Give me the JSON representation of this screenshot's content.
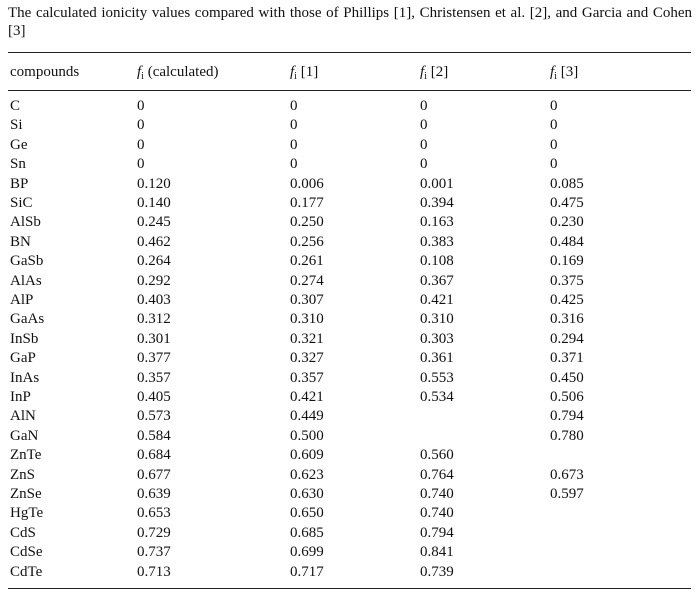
{
  "caption": "The calculated ionicity values compared with those of Phillips [1], Christensen et al. [2], and Garcia and Cohen [3]",
  "table": {
    "columns": [
      {
        "label": "compounds"
      },
      {
        "symbol": "f",
        "subscript": "i",
        "suffix": " (calculated)"
      },
      {
        "symbol": "f",
        "subscript": "i",
        "suffix": " [1]"
      },
      {
        "symbol": "f",
        "subscript": "i",
        "suffix": " [2]"
      },
      {
        "symbol": "f",
        "subscript": "i",
        "suffix": " [3]"
      }
    ],
    "rows": [
      [
        "C",
        "0",
        "0",
        "0",
        "0"
      ],
      [
        "Si",
        "0",
        "0",
        "0",
        "0"
      ],
      [
        "Ge",
        "0",
        "0",
        "0",
        "0"
      ],
      [
        "Sn",
        "0",
        "0",
        "0",
        "0"
      ],
      [
        "BP",
        "0.120",
        "0.006",
        "0.001",
        "0.085"
      ],
      [
        "SiC",
        "0.140",
        "0.177",
        "0.394",
        "0.475"
      ],
      [
        "AlSb",
        "0.245",
        "0.250",
        "0.163",
        "0.230"
      ],
      [
        "BN",
        "0.462",
        "0.256",
        "0.383",
        "0.484"
      ],
      [
        "GaSb",
        "0.264",
        "0.261",
        "0.108",
        "0.169"
      ],
      [
        "AlAs",
        "0.292",
        "0.274",
        "0.367",
        "0.375"
      ],
      [
        "AlP",
        "0.403",
        "0.307",
        "0.421",
        "0.425"
      ],
      [
        "GaAs",
        "0.312",
        "0.310",
        "0.310",
        "0.316"
      ],
      [
        "InSb",
        "0.301",
        "0.321",
        "0.303",
        "0.294"
      ],
      [
        "GaP",
        "0.377",
        "0.327",
        "0.361",
        "0.371"
      ],
      [
        "InAs",
        "0.357",
        "0.357",
        "0.553",
        "0.450"
      ],
      [
        "InP",
        "0.405",
        "0.421",
        "0.534",
        "0.506"
      ],
      [
        "AlN",
        "0.573",
        "0.449",
        "",
        "0.794"
      ],
      [
        "GaN",
        "0.584",
        "0.500",
        "",
        "0.780"
      ],
      [
        "ZnTe",
        "0.684",
        "0.609",
        "0.560",
        ""
      ],
      [
        "ZnS",
        "0.677",
        "0.623",
        "0.764",
        "0.673"
      ],
      [
        "ZnSe",
        "0.639",
        "0.630",
        "0.740",
        "0.597"
      ],
      [
        "HgTe",
        "0.653",
        "0.650",
        "0.740",
        ""
      ],
      [
        "CdS",
        "0.729",
        "0.685",
        "0.794",
        ""
      ],
      [
        "CdSe",
        "0.737",
        "0.699",
        "0.841",
        ""
      ],
      [
        "CdTe",
        "0.713",
        "0.717",
        "0.739",
        ""
      ]
    ]
  }
}
